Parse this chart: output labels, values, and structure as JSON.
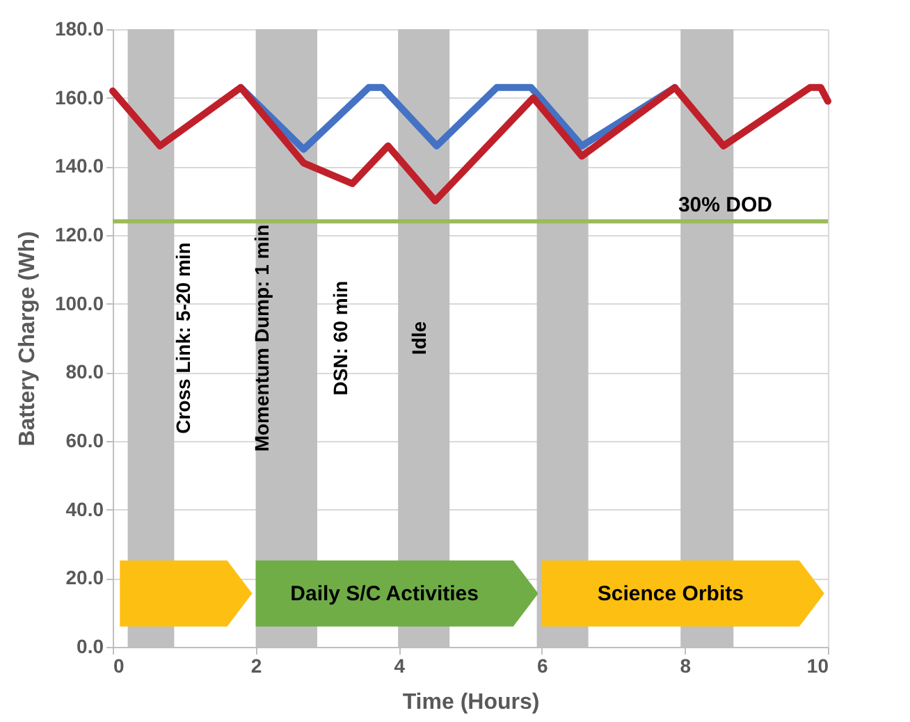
{
  "chart_data": {
    "type": "line",
    "xlabel": "Time (Hours)",
    "ylabel": "Battery Charge (Wh)",
    "xlim": [
      0,
      10
    ],
    "xticks": [
      0,
      2,
      4,
      6,
      8,
      10
    ],
    "ylim": [
      0,
      180
    ],
    "yticks": [
      {
        "value": 0,
        "label": "0.0"
      },
      {
        "value": 20,
        "label": "20.0"
      },
      {
        "value": 40,
        "label": "40.0"
      },
      {
        "value": 60,
        "label": "60.0"
      },
      {
        "value": 80,
        "label": "80.0"
      },
      {
        "value": 100,
        "label": "100.0"
      },
      {
        "value": 120,
        "label": "120.0"
      },
      {
        "value": 140,
        "label": "140.0"
      },
      {
        "value": 160,
        "label": "160.0"
      },
      {
        "value": 180,
        "label": "180.0"
      }
    ],
    "grid": true,
    "line_style": "solid",
    "series": [
      {
        "color": "#4472c4",
        "x": [
          1.79,
          2.67,
          3.58,
          3.77,
          4.53,
          5.37,
          5.85,
          6.56,
          7.86
        ],
        "values": [
          163,
          145,
          163,
          163,
          146,
          163,
          163,
          146,
          163
        ]
      },
      {
        "color": "#c0202a",
        "x": [
          0,
          0.66,
          1.79,
          2.67,
          3.35,
          3.85,
          4.51,
          5.88,
          6.56,
          7.86,
          8.54,
          9.75,
          9.9,
          10
        ],
        "values": [
          162,
          146,
          163,
          141,
          135,
          146,
          130,
          160,
          143,
          163,
          146,
          163,
          163,
          159
        ]
      }
    ],
    "ref_lines": [
      {
        "axis": "y",
        "value": 124,
        "label": "30% DOD",
        "color": "#9bbb59"
      }
    ],
    "bands": [
      {
        "axis": "x",
        "from": 0.21,
        "to": 0.86,
        "color": "#c0bfc0"
      },
      {
        "axis": "x",
        "from": 2.0,
        "to": 2.86,
        "color": "#c0bfc0"
      },
      {
        "axis": "x",
        "from": 3.99,
        "to": 4.71,
        "color": "#c0bfc0"
      },
      {
        "axis": "x",
        "from": 5.93,
        "to": 6.65,
        "color": "#c0bfc0"
      },
      {
        "axis": "x",
        "from": 7.94,
        "to": 8.68,
        "color": "#c0bfc0"
      },
      {
        "axis": "x",
        "from": 0.1,
        "to": 1.95,
        "label": null,
        "color": "#fdbf11"
      },
      {
        "axis": "x",
        "from": 2.0,
        "to": 5.95,
        "label": "Daily S/C Activities",
        "color": "#70ad47"
      },
      {
        "axis": "x",
        "from": 6.0,
        "to": 9.95,
        "label": "Science Orbits",
        "color": "#fdbf11"
      }
    ],
    "annotations": [
      "Cross Link: 5-20 min",
      "Momentum Dump: 1 min",
      "DSN: 60 min",
      "Idle"
    ]
  }
}
